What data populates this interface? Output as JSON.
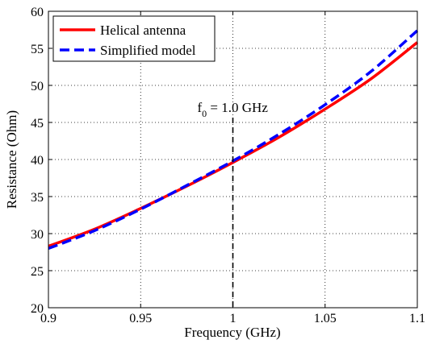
{
  "chart_data": {
    "type": "line",
    "xlabel": "Frequency (GHz)",
    "ylabel": "Resistance (Ohm)",
    "xlim": [
      0.9,
      1.1
    ],
    "ylim": [
      20,
      60
    ],
    "xticks": [
      "0.9",
      "0.95",
      "1",
      "1.05",
      "1.1"
    ],
    "yticks": [
      "20",
      "25",
      "30",
      "35",
      "40",
      "45",
      "50",
      "55",
      "60"
    ],
    "grid": true,
    "legend_position": "top-left",
    "series": [
      {
        "name": "Helical antenna",
        "color": "#ff0000",
        "style": "solid",
        "x": [
          0.9,
          0.925,
          0.95,
          0.975,
          1.0,
          1.025,
          1.05,
          1.075,
          1.1
        ],
        "y": [
          28.3,
          30.6,
          33.4,
          36.4,
          39.6,
          43.0,
          46.8,
          50.9,
          55.8
        ]
      },
      {
        "name": "Simplified model",
        "color": "#0000ff",
        "style": "dashed",
        "x": [
          0.9,
          0.925,
          0.95,
          0.975,
          1.0,
          1.025,
          1.05,
          1.075,
          1.1
        ],
        "y": [
          28.0,
          30.4,
          33.3,
          36.5,
          39.8,
          43.4,
          47.4,
          51.9,
          57.4
        ]
      }
    ],
    "annotation": {
      "x": 1.0,
      "label_main": "f",
      "label_sub": "0",
      "label_rest": " = 1.0 GHz",
      "line_color": "#000000"
    }
  }
}
